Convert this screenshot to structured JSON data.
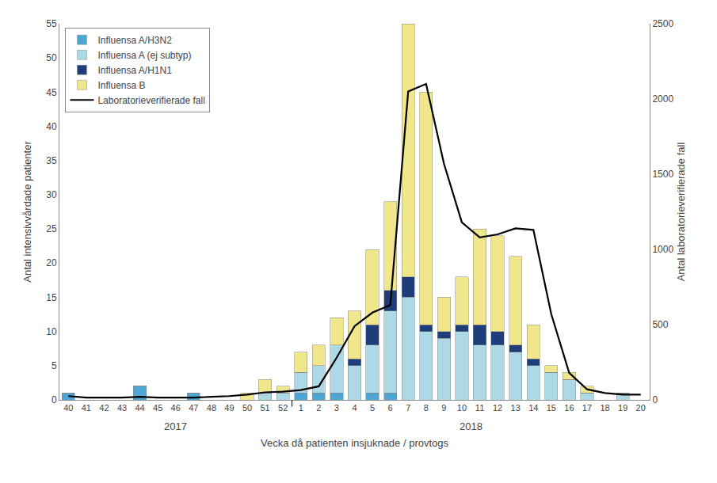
{
  "chart_data": {
    "type": "bar",
    "stacked": true,
    "categories": [
      "40",
      "41",
      "42",
      "43",
      "44",
      "45",
      "46",
      "47",
      "48",
      "49",
      "50",
      "51",
      "52",
      "1",
      "2",
      "3",
      "4",
      "5",
      "6",
      "7",
      "8",
      "9",
      "10",
      "11",
      "12",
      "13",
      "14",
      "15",
      "16",
      "17",
      "18",
      "19",
      "20"
    ],
    "series": [
      {
        "name": "Influensa A/H3N2",
        "color": "#4DA6D4",
        "values": [
          1,
          0,
          0,
          0,
          2,
          0,
          0,
          1,
          0,
          0,
          0,
          0,
          0,
          1,
          1,
          1,
          0,
          1,
          1,
          0,
          0,
          0,
          0,
          0,
          0,
          0,
          0,
          0,
          0,
          0,
          0,
          0,
          0
        ]
      },
      {
        "name": "Influensa A (ej subtyp)",
        "color": "#ADD8E6",
        "values": [
          0,
          0,
          0,
          0,
          0,
          0,
          0,
          0,
          0,
          0,
          0,
          1,
          1,
          3,
          4,
          7,
          5,
          7,
          12,
          15,
          10,
          9,
          10,
          8,
          8,
          7,
          5,
          4,
          3,
          1,
          0,
          1,
          0
        ]
      },
      {
        "name": "Influensa A/H1N1",
        "color": "#1F3D7A",
        "values": [
          0,
          0,
          0,
          0,
          0,
          0,
          0,
          0,
          0,
          0,
          0,
          0,
          0,
          0,
          0,
          0,
          1,
          3,
          3,
          3,
          1,
          1,
          1,
          3,
          2,
          1,
          1,
          0,
          0,
          0,
          0,
          0,
          0
        ]
      },
      {
        "name": "Influensa B",
        "color": "#F0E68C",
        "values": [
          0,
          0,
          0,
          0,
          0,
          0,
          0,
          0,
          0,
          0,
          1,
          2,
          1,
          3,
          3,
          4,
          7,
          11,
          13,
          37,
          34,
          5,
          7,
          14,
          14,
          13,
          5,
          1,
          1,
          1,
          0,
          0,
          0
        ]
      },
      {
        "name": "Laboratorieverifierade fall",
        "type": "line",
        "axis": "y2",
        "color": "#000000",
        "values": [
          25,
          15,
          15,
          15,
          20,
          15,
          15,
          15,
          20,
          25,
          35,
          50,
          55,
          65,
          90,
          280,
          490,
          580,
          630,
          2050,
          2100,
          1570,
          1180,
          1080,
          1100,
          1140,
          1130,
          570,
          180,
          70,
          45,
          35,
          35
        ]
      }
    ],
    "xlabel": "Vecka då patienten insjuknade / provtogs",
    "ylabel": "Antal intensivvårdade patienter",
    "y2label": "Antal laboratorieverifierade fall",
    "ylim": [
      0,
      55
    ],
    "yticks": [
      0,
      5,
      10,
      15,
      20,
      25,
      30,
      35,
      40,
      45,
      50,
      55
    ],
    "y2lim": [
      0,
      2500
    ],
    "y2ticks": [
      0,
      500,
      1000,
      1500,
      2000,
      2500
    ],
    "grid": false,
    "legend": "upper left",
    "annotations": [
      {
        "text": "2017",
        "from": "40",
        "to": "52"
      },
      {
        "text": "2018",
        "from": "1",
        "to": "20"
      }
    ]
  }
}
